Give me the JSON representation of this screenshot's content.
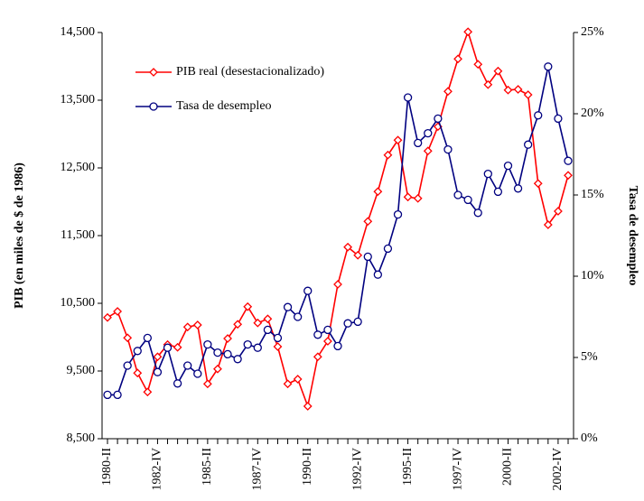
{
  "chart_data": {
    "type": "line",
    "y_label": "PIB (en miles de $ de 1986)",
    "y2_label": "Tasa de desempleo",
    "categories": [
      "1980-II",
      null,
      null,
      null,
      null,
      "1982-IV",
      null,
      null,
      null,
      null,
      "1985-II",
      null,
      null,
      null,
      null,
      "1987-IV",
      null,
      null,
      null,
      null,
      "1990-II",
      null,
      null,
      null,
      null,
      "1992-IV",
      null,
      null,
      null,
      null,
      "1995-II",
      null,
      null,
      null,
      null,
      "1997-IV",
      null,
      null,
      null,
      null,
      "2000-II",
      null,
      null,
      null,
      null,
      "2002-IV",
      null
    ],
    "ylim": [
      8500,
      14500
    ],
    "yticks": [
      {
        "value": 8500,
        "label": "8,500"
      },
      {
        "value": 9500,
        "label": "9,500"
      },
      {
        "value": 10500,
        "label": "10,500"
      },
      {
        "value": 11500,
        "label": "11,500"
      },
      {
        "value": 12500,
        "label": "12,500"
      },
      {
        "value": 13500,
        "label": "13,500"
      },
      {
        "value": 14500,
        "label": "14,500"
      }
    ],
    "y2lim": [
      0,
      25
    ],
    "y2ticks": [
      {
        "value": 0,
        "label": "0%"
      },
      {
        "value": 5,
        "label": "5%"
      },
      {
        "value": 10,
        "label": "10%"
      },
      {
        "value": 15,
        "label": "15%"
      },
      {
        "value": 20,
        "label": "20%"
      },
      {
        "value": 25,
        "label": "25%"
      }
    ],
    "series": [
      {
        "name": "PIB real (desestacionalizado)",
        "color": "#ff0000",
        "marker": "diamond",
        "values": [
          10290,
          10380,
          9990,
          9470,
          9190,
          9710,
          9890,
          9850,
          10150,
          10180,
          9310,
          9530,
          9980,
          10190,
          10450,
          10210,
          10270,
          9860,
          9310,
          9380,
          8980,
          9710,
          9940,
          10780,
          11330,
          11210,
          11710,
          12150,
          12690,
          12910,
          12070,
          12050,
          12750,
          13110,
          13630,
          14110,
          14510,
          14030,
          13730,
          13930,
          13650,
          13660,
          13580,
          12270,
          11660,
          11860,
          12390
        ]
      },
      {
        "name": "Tasa de desempleo",
        "color": "#000080",
        "marker": "circle",
        "axis": "y2",
        "values": [
          2.7,
          2.7,
          4.5,
          5.4,
          6.2,
          4.1,
          5.6,
          3.4,
          4.5,
          4.0,
          5.8,
          5.3,
          5.2,
          4.9,
          5.8,
          5.6,
          6.7,
          6.2,
          8.1,
          7.5,
          9.1,
          6.4,
          6.7,
          5.7,
          7.1,
          7.2,
          11.2,
          10.1,
          11.7,
          13.8,
          21.0,
          18.2,
          18.8,
          19.7,
          17.8,
          15.0,
          14.7,
          13.9,
          16.3,
          15.2,
          16.8,
          15.4,
          18.1,
          19.9,
          22.9,
          19.7,
          17.1
        ]
      }
    ]
  }
}
